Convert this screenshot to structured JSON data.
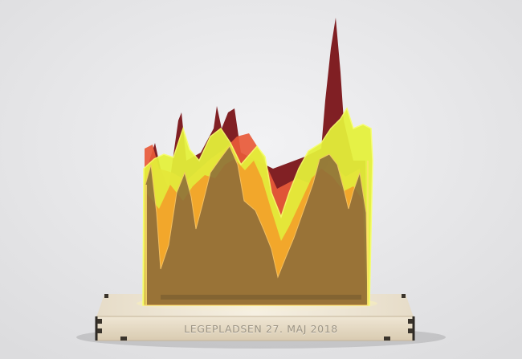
{
  "photo": {
    "subject": "acrylic-data-sculpture-on-wooden-base",
    "base_engraving": "LEGEPLADSEN 27. MAJ 2018",
    "panel_colors": {
      "dark_red": "#7a1418",
      "red_orange": "#e85a3a",
      "orange": "#f3a02a",
      "neon_yellow": "#e5f23a",
      "smoke_brown": "#8a6a3a"
    },
    "background_color": "#e9e9eb",
    "base_color": "#e3d6bf"
  }
}
